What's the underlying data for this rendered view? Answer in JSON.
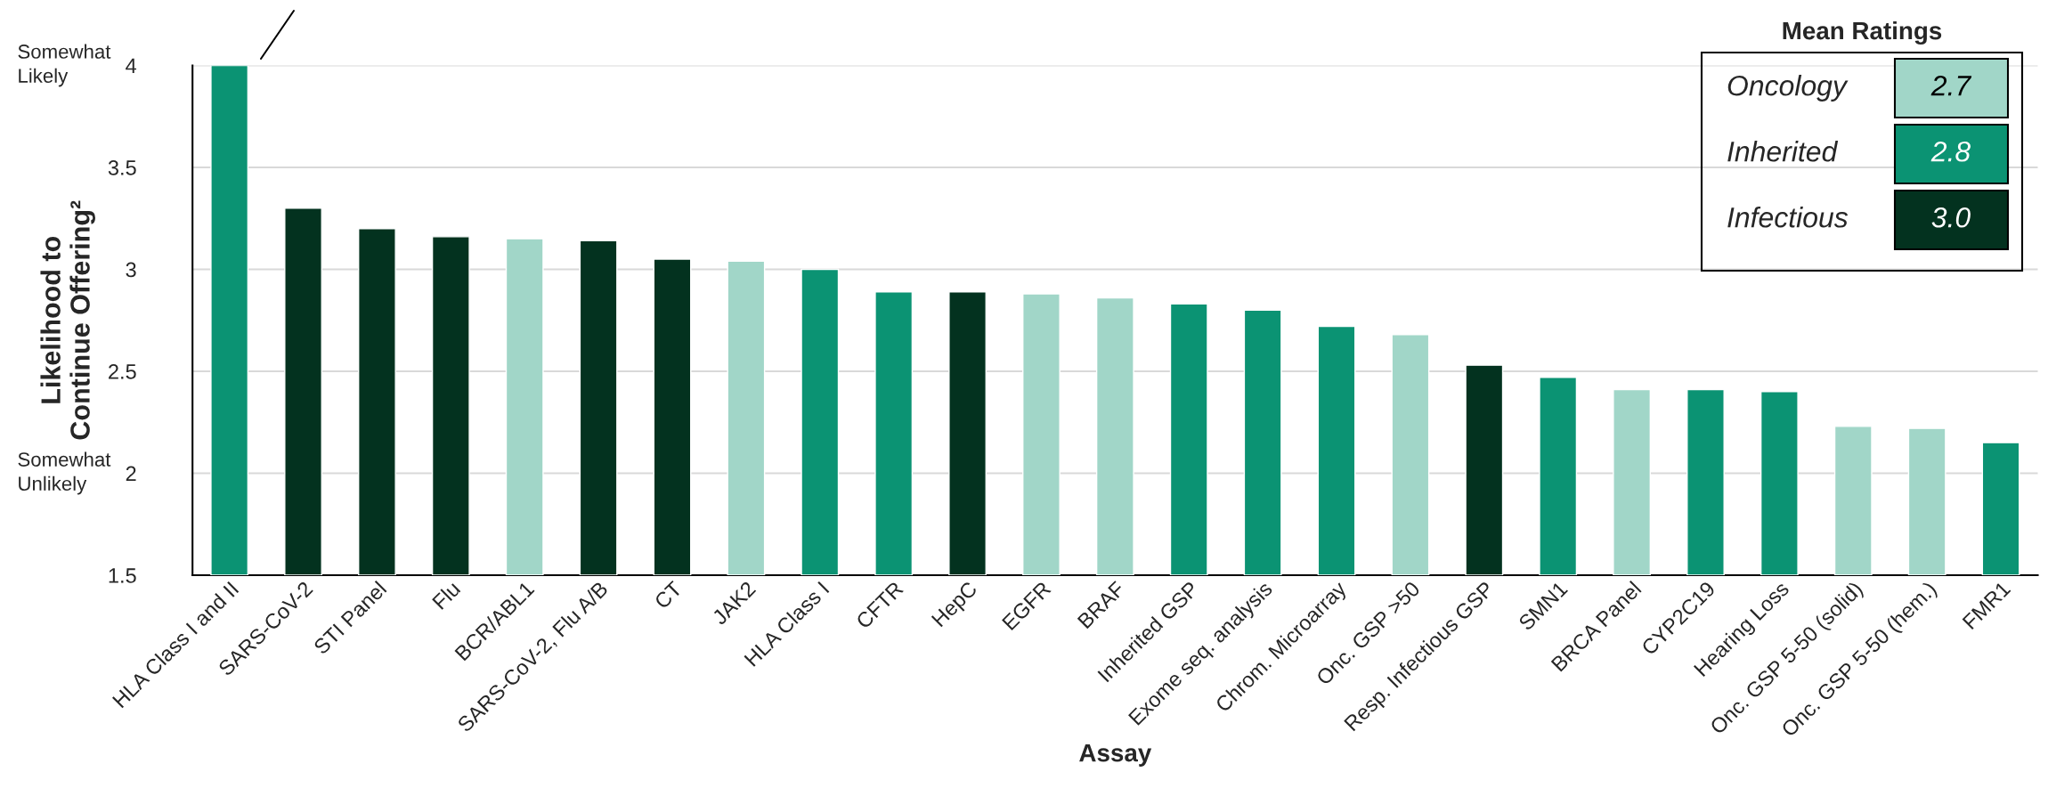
{
  "chart_data": {
    "type": "bar",
    "categories": [
      "HLA Class I and II",
      "SARS-CoV-2",
      "STI Panel",
      "Flu",
      "BCR/ABL1",
      "SARS-CoV-2, Flu A/B",
      "CT",
      "JAK2",
      "HLA Class I",
      "CFTR",
      "HepC",
      "EGFR",
      "BRAF",
      "Inherited GSP",
      "Exome seq. analysis",
      "Chrom. Microarray",
      "Onc. GSP >50",
      "Resp. Infectious GSP",
      "SMN1",
      "BRCA Panel",
      "CYP2C19",
      "Hearing Loss",
      "Onc. GSP 5-50 (solid)",
      "Onc. GSP 5-50 (hem.)",
      "FMR1"
    ],
    "series": [
      {
        "name": "Oncology",
        "color": "#a1d6c8",
        "values": [
          null,
          null,
          null,
          null,
          3.15,
          null,
          null,
          3.04,
          null,
          null,
          null,
          2.88,
          2.86,
          null,
          null,
          null,
          2.68,
          null,
          null,
          2.41,
          null,
          null,
          2.23,
          2.22,
          null
        ]
      },
      {
        "name": "Inherited",
        "color": "#0b9373",
        "values": [
          4.0,
          null,
          null,
          null,
          null,
          null,
          null,
          null,
          3.0,
          2.89,
          null,
          null,
          null,
          2.83,
          2.8,
          2.72,
          null,
          null,
          2.47,
          null,
          2.41,
          2.4,
          null,
          null,
          2.15
        ]
      },
      {
        "name": "Infectious",
        "color": "#03321f",
        "values": [
          null,
          3.3,
          3.2,
          3.16,
          null,
          3.14,
          3.05,
          null,
          null,
          null,
          2.89,
          null,
          null,
          null,
          null,
          null,
          null,
          2.53,
          null,
          null,
          null,
          null,
          null,
          null,
          null
        ]
      }
    ],
    "xlabel": "Assay",
    "ylabel": "Likelihood to\nContinue Offering²",
    "legend_title": "Mean Ratings",
    "legend": "top right",
    "annotations": [
      "2.7",
      "2.8",
      "3.0",
      "Somewhat\nLikely",
      "Somewhat\nUnlikely"
    ],
    "ylim": [
      1.5,
      4
    ],
    "yticks": [
      1.5,
      2,
      2.5,
      3,
      3.5,
      4
    ],
    "grid": "y"
  }
}
